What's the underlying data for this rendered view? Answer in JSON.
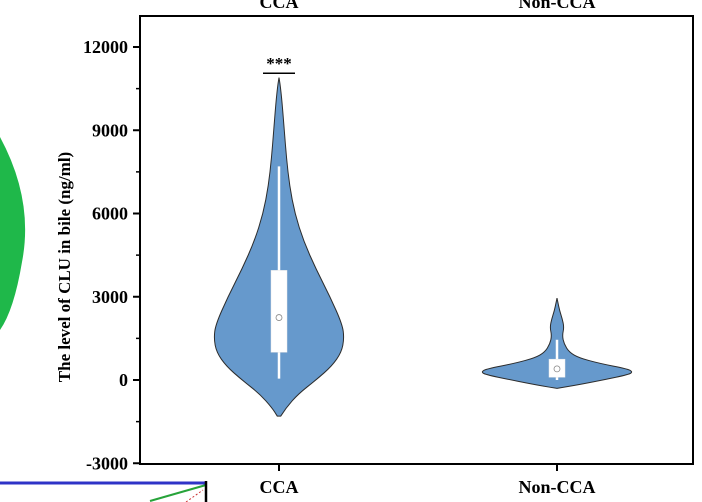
{
  "chart_data": {
    "type": "violin",
    "categories": [
      "CCA",
      "Non-CCA"
    ],
    "top_labels": [
      "CCA",
      "Non-CCA"
    ],
    "ylabel": "The level of CLU in bile (ng/ml)",
    "ylim": [
      -3000,
      12500
    ],
    "yticks": [
      {
        "value": -3000,
        "label": "-3000"
      },
      {
        "value": 0,
        "label": "0"
      },
      {
        "value": 3000,
        "label": "3000"
      },
      {
        "value": 6000,
        "label": "6000"
      },
      {
        "value": 9000,
        "label": "9000"
      },
      {
        "value": 12000,
        "label": "12000"
      }
    ],
    "violins": [
      {
        "category": "CCA",
        "density": [
          {
            "y": -1300,
            "w": 0.02
          },
          {
            "y": -1000,
            "w": 0.08
          },
          {
            "y": -500,
            "w": 0.22
          },
          {
            "y": 0,
            "w": 0.42
          },
          {
            "y": 500,
            "w": 0.6
          },
          {
            "y": 1000,
            "w": 0.71
          },
          {
            "y": 1500,
            "w": 0.74
          },
          {
            "y": 2000,
            "w": 0.72
          },
          {
            "y": 3000,
            "w": 0.58
          },
          {
            "y": 4000,
            "w": 0.42
          },
          {
            "y": 5000,
            "w": 0.28
          },
          {
            "y": 6000,
            "w": 0.18
          },
          {
            "y": 7000,
            "w": 0.12
          },
          {
            "y": 8000,
            "w": 0.085
          },
          {
            "y": 9000,
            "w": 0.06
          },
          {
            "y": 10000,
            "w": 0.035
          },
          {
            "y": 10600,
            "w": 0.015
          },
          {
            "y": 10900,
            "w": 0.0
          }
        ],
        "box": {
          "q1": 1000,
          "q3": 3950,
          "median": 2250,
          "whisker_low": 50,
          "whisker_high": 7700
        }
      },
      {
        "category": "Non-CCA",
        "density": [
          {
            "y": -300,
            "w": 0.0
          },
          {
            "y": -200,
            "w": 0.2
          },
          {
            "y": 0,
            "w": 0.52
          },
          {
            "y": 200,
            "w": 0.82
          },
          {
            "y": 300,
            "w": 0.86
          },
          {
            "y": 400,
            "w": 0.8
          },
          {
            "y": 600,
            "w": 0.48
          },
          {
            "y": 800,
            "w": 0.25
          },
          {
            "y": 1000,
            "w": 0.14
          },
          {
            "y": 1300,
            "w": 0.08
          },
          {
            "y": 1600,
            "w": 0.06
          },
          {
            "y": 1900,
            "w": 0.08
          },
          {
            "y": 2200,
            "w": 0.06
          },
          {
            "y": 2500,
            "w": 0.03
          },
          {
            "y": 2800,
            "w": 0.01
          },
          {
            "y": 2950,
            "w": 0.0
          }
        ],
        "box": {
          "q1": 100,
          "q3": 750,
          "median": 400,
          "whisker_low": 0,
          "whisker_high": 1450
        }
      }
    ],
    "annotations": [
      {
        "text": "***",
        "category": "CCA",
        "y": 11200
      }
    ],
    "grid": false,
    "colors": {
      "violin_fill": "#6699cc",
      "violin_stroke": "#2c2c2c",
      "box_fill": "#ffffff",
      "axis": "#000000",
      "green_blob": "#1fb84a",
      "inset_blue": "#2f33c7"
    }
  }
}
